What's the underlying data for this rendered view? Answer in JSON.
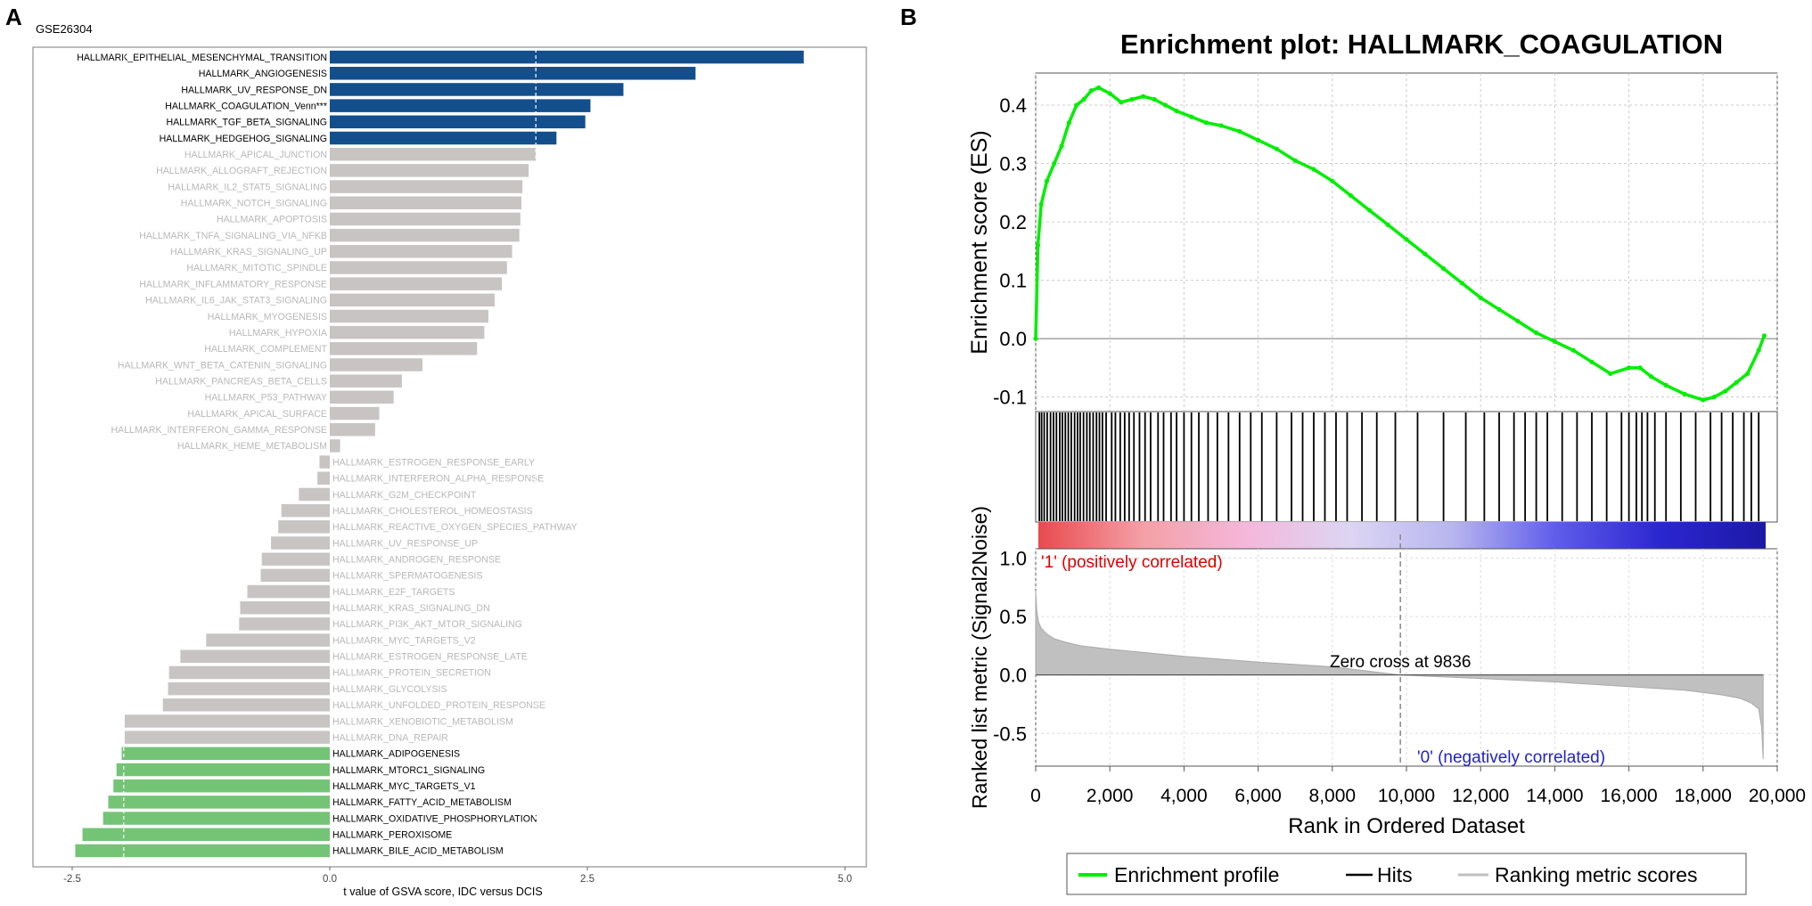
{
  "chart_data": [
    {
      "panel_letter": "A",
      "type": "bar",
      "orientation": "horizontal",
      "title": "GSE26304",
      "xlabel": "t value of GSVA score, IDC versus DCIS",
      "xlim": [
        -2.5,
        5.0
      ],
      "xticks": [
        "-2.5",
        "0.0",
        "2.5",
        "5.0"
      ],
      "xtick_values": [
        -2.5,
        0.0,
        2.5,
        5.0
      ],
      "threshold_lines": [
        -2,
        2
      ],
      "colors": {
        "up": "#124f8c",
        "down": "#74c476",
        "ns": "#c9c4c4",
        "ns_label": "#b8b8b8",
        "sig_label": "#000000"
      },
      "bars": [
        {
          "label": "HALLMARK_EPITHELIAL_MESENCHYMAL_TRANSITION",
          "value": 4.6,
          "group": "up"
        },
        {
          "label": "HALLMARK_ANGIOGENESIS",
          "value": 3.55,
          "group": "up"
        },
        {
          "label": "HALLMARK_UV_RESPONSE_DN",
          "value": 2.85,
          "group": "up"
        },
        {
          "label": "HALLMARK_COAGULATION_Venn***",
          "value": 2.53,
          "group": "up"
        },
        {
          "label": "HALLMARK_TGF_BETA_SIGNALING",
          "value": 2.48,
          "group": "up"
        },
        {
          "label": "HALLMARK_HEDGEHOG_SIGNALING",
          "value": 2.2,
          "group": "up"
        },
        {
          "label": "HALLMARK_APICAL_JUNCTION",
          "value": 2.0,
          "group": "ns"
        },
        {
          "label": "HALLMARK_ALLOGRAFT_REJECTION",
          "value": 1.93,
          "group": "ns"
        },
        {
          "label": "HALLMARK_IL2_STAT5_SIGNALING",
          "value": 1.87,
          "group": "ns"
        },
        {
          "label": "HALLMARK_NOTCH_SIGNALING",
          "value": 1.86,
          "group": "ns"
        },
        {
          "label": "HALLMARK_APOPTOSIS",
          "value": 1.85,
          "group": "ns"
        },
        {
          "label": "HALLMARK_TNFA_SIGNALING_VIA_NFKB",
          "value": 1.84,
          "group": "ns"
        },
        {
          "label": "HALLMARK_KRAS_SIGNALING_UP",
          "value": 1.77,
          "group": "ns"
        },
        {
          "label": "HALLMARK_MITOTIC_SPINDLE",
          "value": 1.72,
          "group": "ns"
        },
        {
          "label": "HALLMARK_INFLAMMATORY_RESPONSE",
          "value": 1.67,
          "group": "ns"
        },
        {
          "label": "HALLMARK_IL6_JAK_STAT3_SIGNALING",
          "value": 1.6,
          "group": "ns"
        },
        {
          "label": "HALLMARK_MYOGENESIS",
          "value": 1.54,
          "group": "ns"
        },
        {
          "label": "HALLMARK_HYPOXIA",
          "value": 1.5,
          "group": "ns"
        },
        {
          "label": "HALLMARK_COMPLEMENT",
          "value": 1.43,
          "group": "ns"
        },
        {
          "label": "HALLMARK_WNT_BETA_CATENIN_SIGNALING",
          "value": 0.9,
          "group": "ns"
        },
        {
          "label": "HALLMARK_PANCREAS_BETA_CELLS",
          "value": 0.7,
          "group": "ns"
        },
        {
          "label": "HALLMARK_P53_PATHWAY",
          "value": 0.62,
          "group": "ns"
        },
        {
          "label": "HALLMARK_APICAL_SURFACE",
          "value": 0.48,
          "group": "ns"
        },
        {
          "label": "HALLMARK_INTERFERON_GAMMA_RESPONSE",
          "value": 0.44,
          "group": "ns"
        },
        {
          "label": "HALLMARK_HEME_METABOLISM",
          "value": 0.1,
          "group": "ns"
        },
        {
          "label": "HALLMARK_ESTROGEN_RESPONSE_EARLY",
          "value": -0.1,
          "group": "ns"
        },
        {
          "label": "HALLMARK_INTERFERON_ALPHA_RESPONSE",
          "value": -0.12,
          "group": "ns"
        },
        {
          "label": "HALLMARK_G2M_CHECKPOINT",
          "value": -0.3,
          "group": "ns"
        },
        {
          "label": "HALLMARK_CHOLESTEROL_HOMEOSTASIS",
          "value": -0.47,
          "group": "ns"
        },
        {
          "label": "HALLMARK_REACTIVE_OXYGEN_SPECIES_PATHWAY",
          "value": -0.5,
          "group": "ns"
        },
        {
          "label": "HALLMARK_UV_RESPONSE_UP",
          "value": -0.57,
          "group": "ns"
        },
        {
          "label": "HALLMARK_ANDROGEN_RESPONSE",
          "value": -0.66,
          "group": "ns"
        },
        {
          "label": "HALLMARK_SPERMATOGENESIS",
          "value": -0.67,
          "group": "ns"
        },
        {
          "label": "HALLMARK_E2F_TARGETS",
          "value": -0.8,
          "group": "ns"
        },
        {
          "label": "HALLMARK_KRAS_SIGNALING_DN",
          "value": -0.87,
          "group": "ns"
        },
        {
          "label": "HALLMARK_PI3K_AKT_MTOR_SIGNALING",
          "value": -0.88,
          "group": "ns"
        },
        {
          "label": "HALLMARK_MYC_TARGETS_V2",
          "value": -1.2,
          "group": "ns"
        },
        {
          "label": "HALLMARK_ESTROGEN_RESPONSE_LATE",
          "value": -1.45,
          "group": "ns"
        },
        {
          "label": "HALLMARK_PROTEIN_SECRETION",
          "value": -1.56,
          "group": "ns"
        },
        {
          "label": "HALLMARK_GLYCOLYSIS",
          "value": -1.57,
          "group": "ns"
        },
        {
          "label": "HALLMARK_UNFOLDED_PROTEIN_RESPONSE",
          "value": -1.62,
          "group": "ns"
        },
        {
          "label": "HALLMARK_XENOBIOTIC_METABOLISM",
          "value": -1.99,
          "group": "ns"
        },
        {
          "label": "HALLMARK_DNA_REPAIR",
          "value": -1.99,
          "group": "ns"
        },
        {
          "label": "HALLMARK_ADIPOGENESIS",
          "value": -2.02,
          "group": "down"
        },
        {
          "label": "HALLMARK_MTORC1_SIGNALING",
          "value": -2.07,
          "group": "down"
        },
        {
          "label": "HALLMARK_MYC_TARGETS_V1",
          "value": -2.1,
          "group": "down"
        },
        {
          "label": "HALLMARK_FATTY_ACID_METABOLISM",
          "value": -2.15,
          "group": "down"
        },
        {
          "label": "HALLMARK_OXIDATIVE_PHOSPHORYLATION",
          "value": -2.2,
          "group": "down"
        },
        {
          "label": "HALLMARK_PEROXISOME",
          "value": -2.4,
          "group": "down"
        },
        {
          "label": "HALLMARK_BILE_ACID_METABOLISM",
          "value": -2.47,
          "group": "down"
        }
      ]
    },
    {
      "panel_letter": "B",
      "type": "line",
      "title": "Enrichment plot: HALLMARK_COAGULATION",
      "xlabel": "Rank in Ordered Dataset",
      "xlim": [
        0,
        20000
      ],
      "xticks": [
        "0",
        "2,000",
        "4,000",
        "6,000",
        "8,000",
        "10,000",
        "12,000",
        "14,000",
        "16,000",
        "18,000",
        "20,000"
      ],
      "xtick_values": [
        0,
        2000,
        4000,
        6000,
        8000,
        10000,
        12000,
        14000,
        16000,
        18000,
        20000
      ],
      "es_panel": {
        "ylabel": "Enrichment score (ES)",
        "ylim": [
          -0.125,
          0.455
        ],
        "yticks": [
          "0.4",
          "0.3",
          "0.2",
          "0.1",
          "0.0",
          "-0.1"
        ],
        "ytick_values": [
          0.4,
          0.3,
          0.2,
          0.1,
          0.0,
          -0.1
        ],
        "line_color": "#00ee00",
        "x": [
          0,
          60,
          150,
          300,
          500,
          700,
          900,
          1100,
          1300,
          1500,
          1700,
          2000,
          2300,
          2600,
          2900,
          3200,
          3500,
          3800,
          4200,
          4600,
          5000,
          5500,
          6000,
          6500,
          7000,
          7500,
          8000,
          8500,
          9000,
          9500,
          10000,
          10500,
          11000,
          11500,
          12000,
          12500,
          13000,
          13500,
          14000,
          14500,
          15000,
          15500,
          16000,
          16300,
          16600,
          17000,
          17500,
          18000,
          18300,
          18600,
          18900,
          19200,
          19500,
          19650
        ],
        "y": [
          0.0,
          0.16,
          0.23,
          0.27,
          0.3,
          0.33,
          0.37,
          0.4,
          0.41,
          0.425,
          0.43,
          0.42,
          0.405,
          0.41,
          0.415,
          0.41,
          0.4,
          0.39,
          0.38,
          0.37,
          0.365,
          0.355,
          0.34,
          0.325,
          0.305,
          0.29,
          0.27,
          0.245,
          0.22,
          0.195,
          0.17,
          0.145,
          0.12,
          0.095,
          0.07,
          0.05,
          0.03,
          0.01,
          -0.005,
          -0.02,
          -0.04,
          -0.06,
          -0.05,
          -0.05,
          -0.065,
          -0.08,
          -0.095,
          -0.105,
          -0.1,
          -0.09,
          -0.075,
          -0.06,
          -0.02,
          0.005
        ]
      },
      "hits": [
        100,
        160,
        230,
        310,
        400,
        480,
        560,
        650,
        720,
        800,
        880,
        960,
        1050,
        1130,
        1200,
        1290,
        1380,
        1460,
        1550,
        1640,
        1720,
        1800,
        1900,
        2050,
        2150,
        2280,
        2400,
        2520,
        2650,
        2800,
        2950,
        3100,
        3300,
        3450,
        3650,
        3800,
        4000,
        4200,
        4400,
        4650,
        4900,
        5200,
        5500,
        5800,
        6100,
        6500,
        6900,
        7200,
        7500,
        7800,
        8100,
        8400,
        8800,
        9200,
        9700,
        10300,
        11000,
        11600,
        12100,
        12500,
        12900,
        13200,
        13500,
        13800,
        14200,
        14600,
        15000,
        15400,
        15800,
        16000,
        16200,
        16350,
        16500,
        16700,
        17000,
        17400,
        17800,
        18200,
        18500,
        18800,
        19100,
        19300,
        19500
      ],
      "color_bar": {
        "stops": [
          "#e84a4e",
          "#f4a0a6",
          "#f5b7db",
          "#dcd5f3",
          "#b7b5ef",
          "#5e5ce9",
          "#2a26d0",
          "#1c19a6"
        ]
      },
      "metric_panel": {
        "ylabel": "Ranked list metric (Signal2Noise)",
        "ylim": [
          -0.78,
          1.08
        ],
        "yticks": [
          "1.0",
          "0.5",
          "0.0",
          "-0.5"
        ],
        "ytick_values": [
          1.0,
          0.5,
          0.0,
          -0.5
        ],
        "fill_color": "#c0c0c0",
        "x": [
          0,
          30,
          80,
          150,
          300,
          500,
          800,
          1200,
          2000,
          3000,
          4000,
          6000,
          8000,
          9836,
          12000,
          14000,
          16000,
          17500,
          18500,
          19000,
          19300,
          19500,
          19580,
          19620
        ],
        "y": [
          0.72,
          0.55,
          0.45,
          0.4,
          0.35,
          0.31,
          0.28,
          0.25,
          0.22,
          0.19,
          0.16,
          0.11,
          0.07,
          0.0,
          -0.03,
          -0.06,
          -0.1,
          -0.13,
          -0.17,
          -0.2,
          -0.24,
          -0.29,
          -0.45,
          -0.72
        ],
        "zero_cross": 9836,
        "zero_cross_label": "Zero cross at 9836",
        "positive_label": "'1' (positively correlated)",
        "negative_label": "'0' (negatively correlated)"
      },
      "legend": {
        "placement": "bottom",
        "items": [
          {
            "label": "Enrichment profile",
            "color": "#00ee00"
          },
          {
            "label": "Hits",
            "color": "#000000"
          },
          {
            "label": "Ranking metric scores",
            "color": "#c0c0c0"
          }
        ]
      }
    }
  ]
}
